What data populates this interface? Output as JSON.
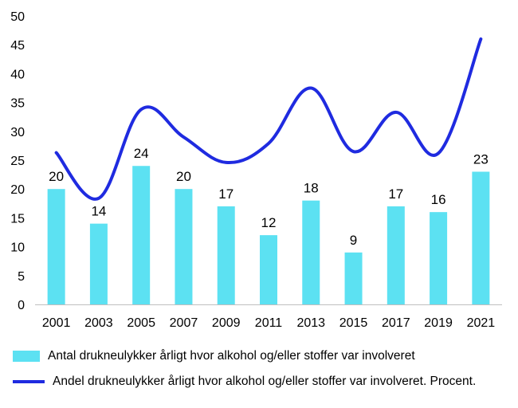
{
  "chart_data": {
    "type": "bar",
    "categories": [
      "2001",
      "2003",
      "2005",
      "2007",
      "2009",
      "2011",
      "2013",
      "2015",
      "2017",
      "2019",
      "2021"
    ],
    "series": [
      {
        "name": "Antal drukneulykker årligt hvor alkohol og/eller stoffer var involveret",
        "type": "bar",
        "values": [
          20,
          14,
          24,
          20,
          17,
          12,
          18,
          9,
          17,
          16,
          23
        ],
        "data_labels": true
      },
      {
        "name": "Andel drukneulykker årligt hvor alkohol og/eller stoffer var involveret. Procent.",
        "type": "line",
        "values": [
          26.3,
          18.4,
          33.8,
          29.0,
          24.6,
          27.9,
          37.5,
          26.5,
          33.3,
          26.2,
          46.0
        ],
        "data_labels": false
      }
    ],
    "title": "",
    "xlabel": "",
    "ylabel": "",
    "ylim": [
      0,
      50
    ],
    "yticks": [
      "0",
      "5",
      "10",
      "15",
      "20",
      "25",
      "30",
      "35",
      "40",
      "45",
      "50"
    ],
    "grid": false,
    "legend_position": "bottom",
    "colors": {
      "bar": "#5ce1f2",
      "line": "#1f2be0"
    }
  }
}
